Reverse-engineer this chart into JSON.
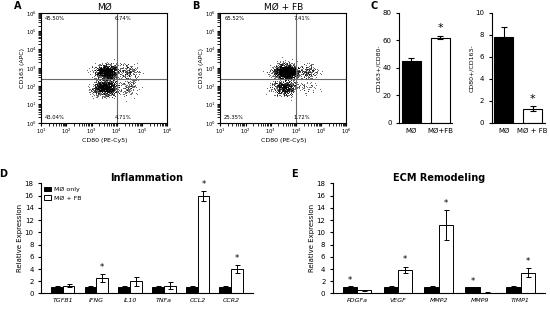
{
  "panel_A_title": "MØ",
  "panel_B_title": "MØ + FB",
  "panel_C_left": {
    "categories": [
      "MØ",
      "MØ+FB"
    ],
    "values": [
      45,
      62
    ],
    "errors": [
      2,
      1
    ],
    "ylabel": "CD163+/CD80-",
    "ylim": [
      0,
      80
    ],
    "yticks": [
      0,
      20,
      40,
      60,
      80
    ],
    "colors": [
      "black",
      "white"
    ]
  },
  "panel_C_right": {
    "categories": [
      "MØ",
      "MØ + FB"
    ],
    "values": [
      7.8,
      1.3
    ],
    "errors": [
      0.9,
      0.2
    ],
    "ylabel": "CD80+/CD163-",
    "ylim": [
      0,
      10
    ],
    "yticks": [
      0,
      2,
      4,
      6,
      8,
      10
    ],
    "colors": [
      "black",
      "white"
    ]
  },
  "panel_D": {
    "title": "Inflammation",
    "categories": [
      "TGFB1",
      "IFNG",
      "IL10",
      "TNFa",
      "CCL2",
      "CCR2"
    ],
    "mo_values": [
      1.0,
      1.0,
      1.0,
      1.0,
      1.0,
      1.0
    ],
    "fb_values": [
      1.3,
      2.5,
      2.0,
      1.3,
      16.0,
      4.0
    ],
    "mo_errors": [
      0.15,
      0.2,
      0.3,
      0.2,
      0.15,
      0.15
    ],
    "fb_errors": [
      0.2,
      0.7,
      0.7,
      0.5,
      0.8,
      0.7
    ],
    "ylabel": "Relative Expression",
    "ylim": [
      0,
      18
    ],
    "yticks": [
      0,
      2,
      4,
      6,
      8,
      10,
      12,
      14,
      16,
      18
    ],
    "sig_indices_fb": [
      1,
      4,
      5
    ],
    "sig_indices_mo": [],
    "legend_labels": [
      "MØ only",
      "MØ + FB"
    ]
  },
  "panel_E": {
    "title": "ECM Remodeling",
    "categories": [
      "PDGFa",
      "VEGF",
      "MMP2",
      "MMP9",
      "TIMP1"
    ],
    "mo_values": [
      1.0,
      1.0,
      1.0,
      1.0,
      1.0
    ],
    "fb_values": [
      0.5,
      3.9,
      11.2,
      0.15,
      3.4
    ],
    "mo_errors": [
      0.15,
      0.2,
      0.3,
      0.1,
      0.2
    ],
    "fb_errors": [
      0.1,
      0.5,
      2.5,
      0.05,
      0.7
    ],
    "ylabel": "Relative Expression",
    "ylim": [
      0,
      18
    ],
    "yticks": [
      0,
      2,
      4,
      6,
      8,
      10,
      12,
      14,
      16,
      18
    ],
    "sig_indices_fb": [
      1,
      2,
      4
    ],
    "sig_indices_mo": [
      0,
      3
    ]
  }
}
